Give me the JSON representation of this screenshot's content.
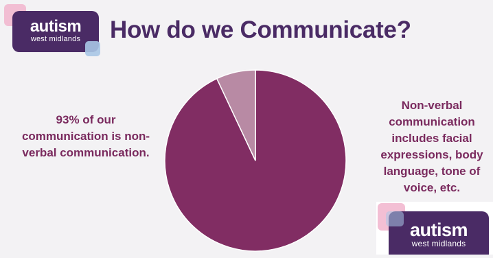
{
  "logo": {
    "word": "autism",
    "sub": "west midlands"
  },
  "title": "How do we Communicate?",
  "left_text": "93% of our communication is non-verbal communication.",
  "right_text": "Non-verbal communication includes facial expressions, body language, tone of voice, etc.",
  "chart_data": {
    "type": "pie",
    "slices": [
      {
        "value": 93,
        "color": "#812d63"
      },
      {
        "value": 7,
        "color": "#b88aa4"
      }
    ],
    "start": "12 o'clock",
    "direction": "clockwise"
  }
}
